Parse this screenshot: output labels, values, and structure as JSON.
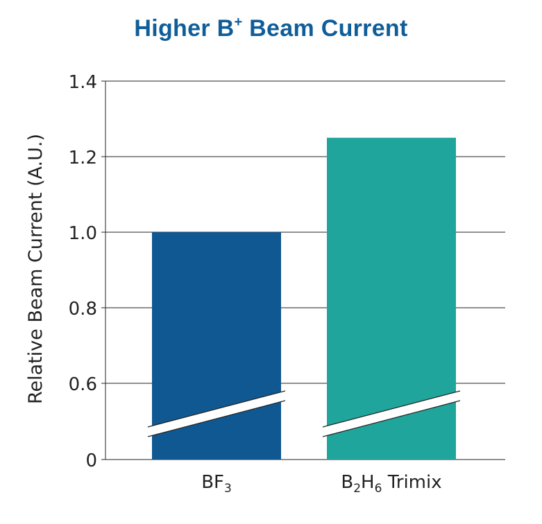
{
  "chart_data": {
    "type": "bar",
    "title": {
      "main": "Higher B",
      "superscript": "+",
      "rest": " Beam Current"
    },
    "ylabel": "Relative Beam Current (A.U.)",
    "xlabel": "",
    "axis_break": true,
    "ylim": [
      0,
      1.4
    ],
    "yticks": [
      {
        "value": 0,
        "label": "0"
      },
      {
        "value": 0.6,
        "label": "0.6"
      },
      {
        "value": 0.8,
        "label": "0.8"
      },
      {
        "value": 1.0,
        "label": "1.0"
      },
      {
        "value": 1.2,
        "label": "1.2"
      },
      {
        "value": 1.4,
        "label": "1.4"
      }
    ],
    "grid": true,
    "categories": [
      {
        "parts": [
          {
            "t": "BF",
            "sub": false
          },
          {
            "t": "3",
            "sub": true
          }
        ]
      },
      {
        "parts": [
          {
            "t": "B",
            "sub": false
          },
          {
            "t": "2",
            "sub": true
          },
          {
            "t": "H",
            "sub": false
          },
          {
            "t": "6",
            "sub": true
          },
          {
            "t": " Trimix",
            "sub": false
          }
        ]
      }
    ],
    "values": [
      1.0,
      1.25
    ],
    "colors": [
      "#0f5891",
      "#1fa59b"
    ]
  }
}
